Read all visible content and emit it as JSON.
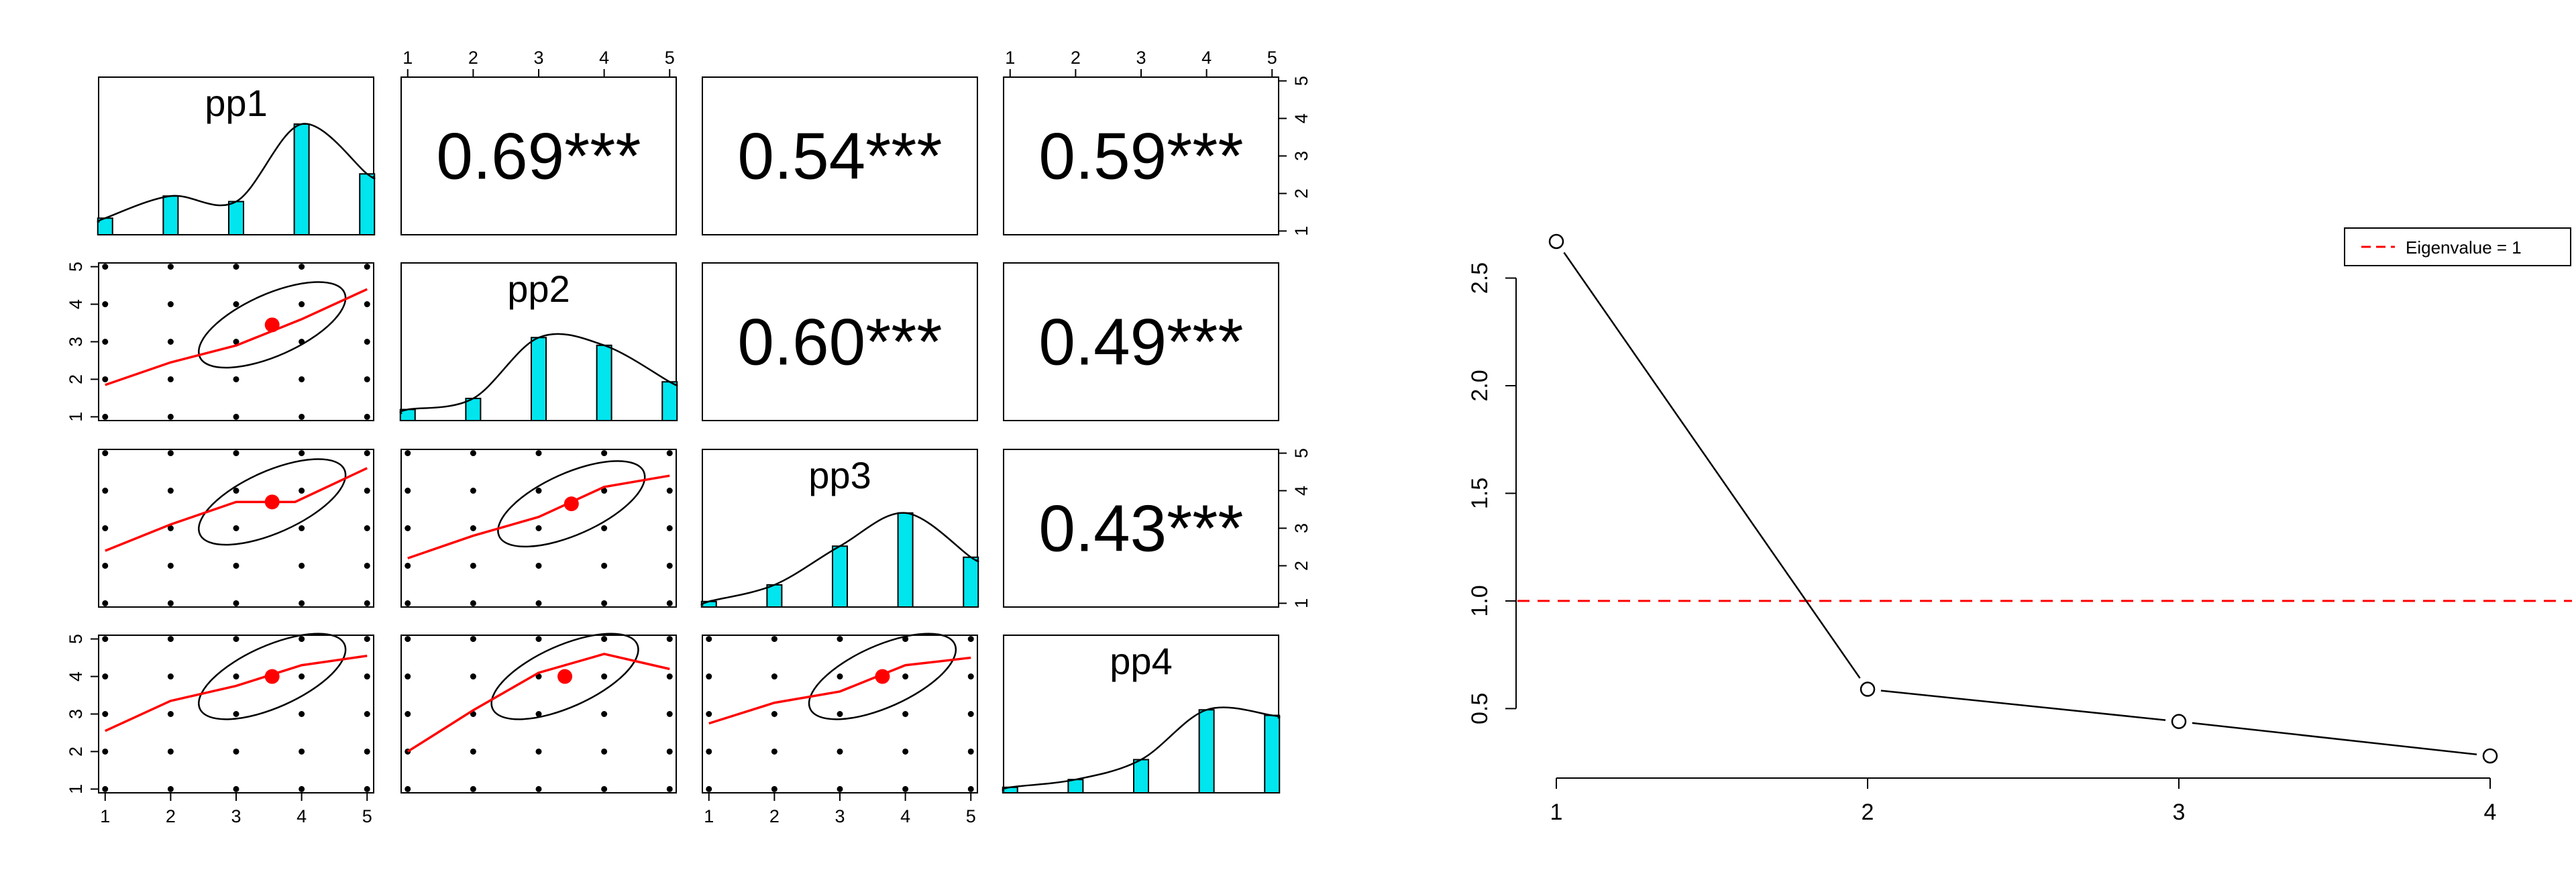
{
  "colors": {
    "bar_fill": "#00E5EE",
    "smooth_line": "#FF0000",
    "center_point": "#FF0000",
    "eigen_line": "#FF0000",
    "ink": "#000000"
  },
  "chart_data": [
    {
      "type": "scatter-matrix",
      "title": "",
      "variables": [
        "pp1",
        "pp2",
        "pp3",
        "pp4"
      ],
      "tick_values": [
        1,
        2,
        3,
        4,
        5
      ],
      "correlations": [
        {
          "row": 0,
          "col": 1,
          "label": "0.69***"
        },
        {
          "row": 0,
          "col": 2,
          "label": "0.54***"
        },
        {
          "row": 0,
          "col": 3,
          "label": "0.59***"
        },
        {
          "row": 1,
          "col": 2,
          "label": "0.60***"
        },
        {
          "row": 1,
          "col": 3,
          "label": "0.49***"
        },
        {
          "row": 2,
          "col": 3,
          "label": "0.43***"
        }
      ],
      "histograms": [
        {
          "variable": "pp1",
          "values": [
            0.15,
            0.35,
            0.3,
            1.0,
            0.55
          ]
        },
        {
          "variable": "pp2",
          "values": [
            0.1,
            0.2,
            0.75,
            0.68,
            0.35
          ]
        },
        {
          "variable": "pp3",
          "values": [
            0.05,
            0.2,
            0.55,
            0.85,
            0.45
          ]
        },
        {
          "variable": "pp4",
          "values": [
            0.05,
            0.12,
            0.3,
            0.75,
            0.7
          ]
        }
      ],
      "scatter_points": [
        [
          1,
          1
        ],
        [
          1,
          2
        ],
        [
          1,
          3
        ],
        [
          1,
          4
        ],
        [
          1,
          5
        ],
        [
          2,
          1
        ],
        [
          2,
          2
        ],
        [
          2,
          3
        ],
        [
          2,
          4
        ],
        [
          2,
          5
        ],
        [
          3,
          1
        ],
        [
          3,
          2
        ],
        [
          3,
          3
        ],
        [
          3,
          4
        ],
        [
          3,
          5
        ],
        [
          4,
          1
        ],
        [
          4,
          2
        ],
        [
          4,
          3
        ],
        [
          4,
          4
        ],
        [
          4,
          5
        ],
        [
          5,
          1
        ],
        [
          5,
          2
        ],
        [
          5,
          3
        ],
        [
          5,
          4
        ],
        [
          5,
          5
        ]
      ],
      "scatter_panels": [
        {
          "row": 1,
          "col": 0,
          "center": [
            3.55,
            3.45
          ],
          "smooth": [
            [
              1,
              1.85
            ],
            [
              2,
              2.45
            ],
            [
              3,
              2.9
            ],
            [
              4,
              3.6
            ],
            [
              5,
              4.4
            ]
          ]
        },
        {
          "row": 2,
          "col": 0,
          "center": [
            3.55,
            3.7
          ],
          "smooth": [
            [
              1,
              2.4
            ],
            [
              2,
              3.1
            ],
            [
              3,
              3.7
            ],
            [
              3.9,
              3.7
            ],
            [
              5,
              4.6
            ]
          ]
        },
        {
          "row": 2,
          "col": 1,
          "center": [
            3.5,
            3.65
          ],
          "smooth": [
            [
              1,
              2.2
            ],
            [
              2,
              2.8
            ],
            [
              3,
              3.3
            ],
            [
              4,
              4.1
            ],
            [
              5,
              4.4
            ]
          ]
        },
        {
          "row": 3,
          "col": 0,
          "center": [
            3.55,
            4.0
          ],
          "smooth": [
            [
              1,
              2.55
            ],
            [
              2,
              3.35
            ],
            [
              3,
              3.75
            ],
            [
              4,
              4.3
            ],
            [
              5,
              4.55
            ]
          ]
        },
        {
          "row": 3,
          "col": 1,
          "center": [
            3.4,
            4.0
          ],
          "smooth": [
            [
              1,
              2.0
            ],
            [
              2,
              3.1
            ],
            [
              3,
              4.1
            ],
            [
              4,
              4.6
            ],
            [
              5,
              4.2
            ]
          ]
        },
        {
          "row": 3,
          "col": 2,
          "center": [
            3.65,
            4.0
          ],
          "smooth": [
            [
              1,
              2.75
            ],
            [
              2,
              3.3
            ],
            [
              3,
              3.6
            ],
            [
              4,
              4.3
            ],
            [
              5,
              4.5
            ]
          ]
        }
      ]
    },
    {
      "type": "line",
      "title": "",
      "xlabel": "",
      "ylabel": "",
      "x": [
        1,
        2,
        3,
        4
      ],
      "series": [
        {
          "values": [
            2.67,
            0.59,
            0.44,
            0.28
          ]
        }
      ],
      "x_ticks": [
        1,
        2,
        3,
        4
      ],
      "y_ticks": [
        "0.5",
        "1.0",
        "1.5",
        "2.0",
        "2.5"
      ],
      "xlim": [
        1,
        4
      ],
      "ylim": [
        0.28,
        2.67
      ],
      "reference_line": {
        "y": 1.0,
        "style": "dashed"
      },
      "legend": {
        "label": "Eigenvalue = 1",
        "position": "top-right"
      }
    }
  ]
}
